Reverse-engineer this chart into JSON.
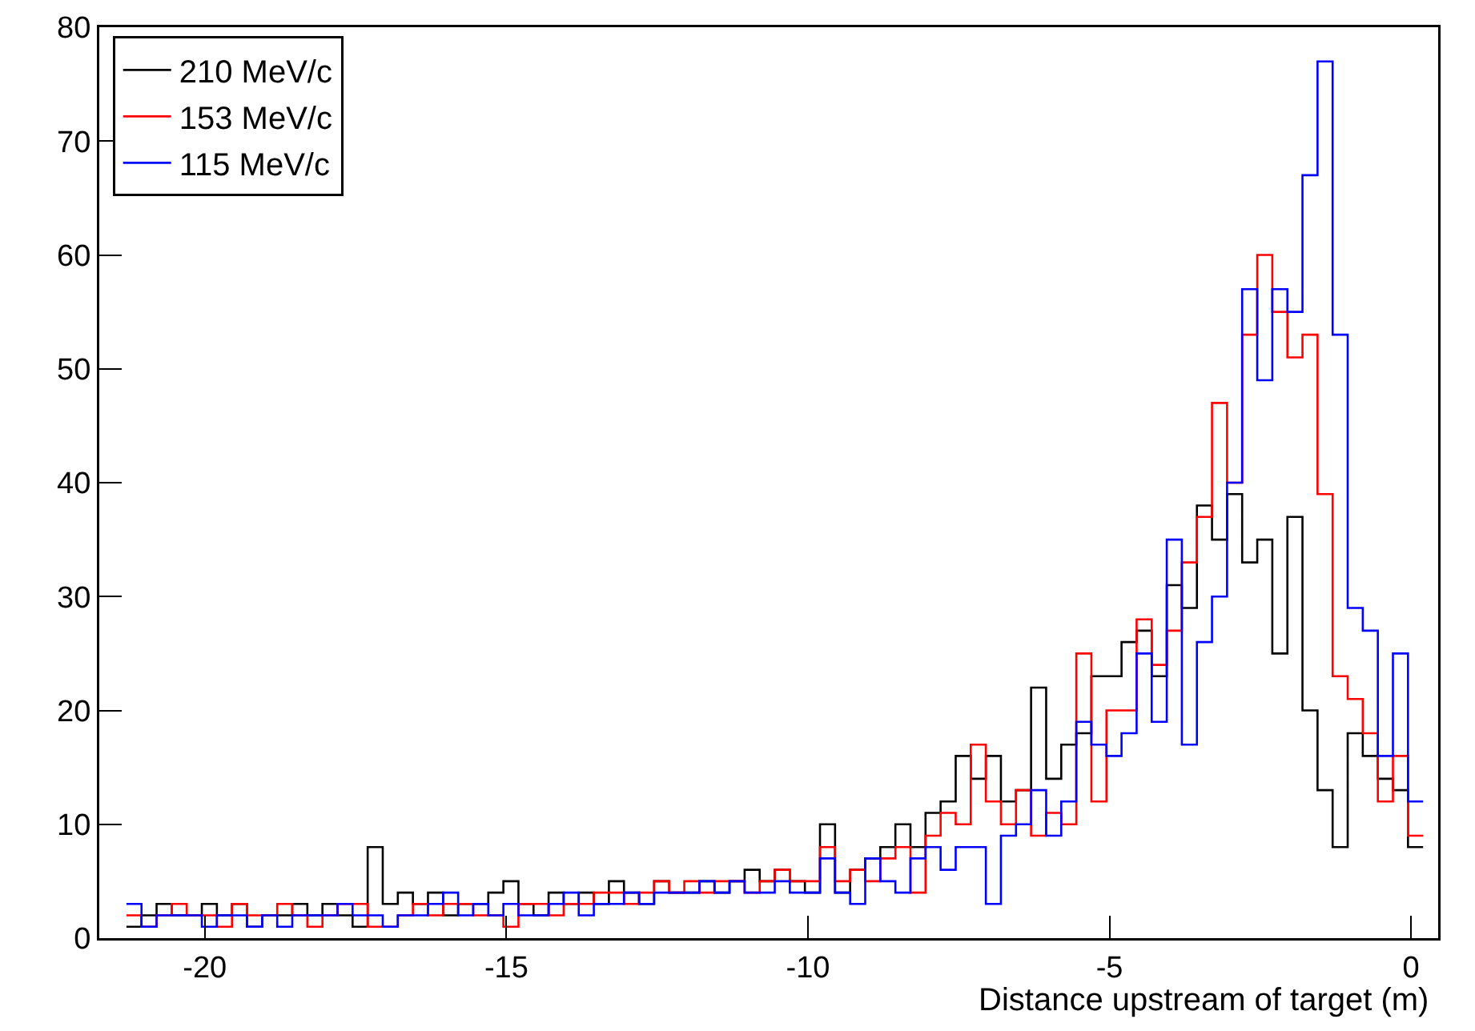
{
  "chart_data": {
    "type": "histogram",
    "xlabel": "Distance upstream of target (m)",
    "bins": [
      -21.3,
      -21.05,
      -20.8,
      -20.55,
      -20.3,
      -20.05,
      -19.8,
      -19.55,
      -19.3,
      -19.05,
      -18.8,
      -18.55,
      -18.3,
      -18.05,
      -17.8,
      -17.55,
      -17.3,
      -17.05,
      -16.8,
      -16.55,
      -16.3,
      -16.05,
      -15.8,
      -15.55,
      -15.3,
      -15.05,
      -14.8,
      -14.55,
      -14.3,
      -14.05,
      -13.8,
      -13.55,
      -13.3,
      -13.05,
      -12.8,
      -12.55,
      -12.3,
      -12.05,
      -11.8,
      -11.55,
      -11.3,
      -11.05,
      -10.8,
      -10.55,
      -10.3,
      -10.05,
      -9.8,
      -9.55,
      -9.3,
      -9.05,
      -8.8,
      -8.55,
      -8.3,
      -8.05,
      -7.8,
      -7.55,
      -7.3,
      -7.05,
      -6.8,
      -6.55,
      -6.3,
      -6.05,
      -5.8,
      -5.55,
      -5.3,
      -5.05,
      -4.8,
      -4.55,
      -4.3,
      -4.05,
      -3.8,
      -3.55,
      -3.3,
      -3.05,
      -2.8,
      -2.55,
      -2.3,
      -2.05,
      -1.8,
      -1.55,
      -1.3,
      -1.05,
      -0.8,
      -0.55,
      -0.3,
      -0.05,
      0.2
    ],
    "series": [
      {
        "name": "210 MeV/c",
        "color": "#000000",
        "values": [
          1,
          2,
          3,
          2,
          2,
          3,
          2,
          3,
          1,
          2,
          2,
          3,
          2,
          3,
          2,
          1,
          8,
          3,
          4,
          3,
          4,
          2,
          3,
          3,
          4,
          5,
          3,
          2,
          4,
          3,
          4,
          3,
          5,
          4,
          3,
          5,
          4,
          4,
          5,
          4,
          5,
          6,
          5,
          6,
          5,
          4,
          10,
          4,
          6,
          7,
          8,
          10,
          8,
          11,
          12,
          16,
          14,
          16,
          12,
          13,
          22,
          14,
          17,
          18,
          23,
          23,
          26,
          27,
          23,
          31,
          29,
          38,
          35,
          39,
          33,
          35,
          25,
          37,
          20,
          13,
          8,
          18,
          16,
          14,
          13,
          8
        ]
      },
      {
        "name": "153 MeV/c",
        "color": "#ff0000",
        "values": [
          2,
          1,
          2,
          3,
          2,
          2,
          1,
          3,
          2,
          2,
          3,
          2,
          1,
          2,
          3,
          3,
          1,
          1,
          2,
          3,
          2,
          3,
          3,
          2,
          2,
          1,
          3,
          3,
          2,
          3,
          3,
          4,
          4,
          3,
          4,
          5,
          4,
          5,
          4,
          5,
          5,
          4,
          5,
          6,
          5,
          5,
          8,
          5,
          6,
          5,
          7,
          8,
          4,
          9,
          11,
          10,
          17,
          12,
          10,
          13,
          9,
          11,
          10,
          25,
          12,
          20,
          20,
          28,
          24,
          27,
          33,
          37,
          47,
          40,
          53,
          60,
          55,
          51,
          53,
          39,
          23,
          21,
          18,
          12,
          16,
          9
        ]
      },
      {
        "name": "115 MeV/c",
        "color": "#0000ff",
        "values": [
          3,
          1,
          2,
          2,
          2,
          1,
          2,
          2,
          1,
          2,
          1,
          2,
          2,
          2,
          3,
          2,
          2,
          1,
          2,
          2,
          3,
          4,
          2,
          3,
          2,
          3,
          2,
          2,
          3,
          4,
          2,
          3,
          3,
          4,
          3,
          4,
          4,
          4,
          5,
          4,
          5,
          4,
          4,
          5,
          4,
          4,
          7,
          4,
          3,
          7,
          5,
          4,
          7,
          8,
          6,
          8,
          8,
          3,
          9,
          10,
          13,
          9,
          12,
          19,
          17,
          16,
          18,
          25,
          19,
          35,
          17,
          26,
          30,
          40,
          57,
          49,
          57,
          55,
          67,
          77,
          53,
          29,
          27,
          16,
          25,
          12
        ]
      }
    ],
    "xlim": [
      -21.75,
      0.45
    ],
    "xticks": [
      -20,
      -15,
      -10,
      -5,
      0
    ],
    "ylim": [
      0,
      80
    ],
    "yticks": [
      0,
      10,
      20,
      30,
      40,
      50,
      60,
      70,
      80
    ],
    "grid": false,
    "legend": "top left"
  }
}
